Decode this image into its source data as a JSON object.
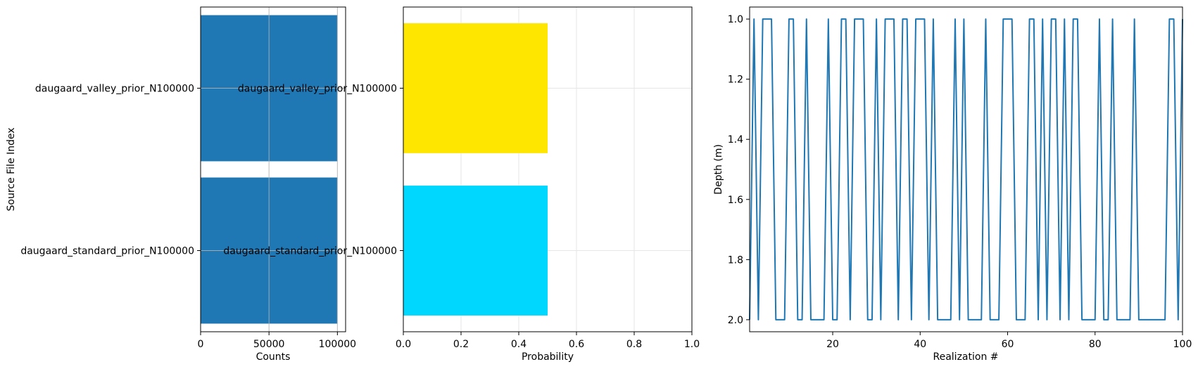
{
  "chart_data": [
    {
      "type": "bar",
      "orientation": "horizontal",
      "categories": [
        "daugaard_standard_prior_N100000",
        "daugaard_valley_prior_N100000"
      ],
      "values": [
        100000,
        100000
      ],
      "color": "#1f77b4",
      "title": "",
      "xlabel": "Counts",
      "ylabel": "Source File Index",
      "xlim": [
        0,
        106000
      ],
      "xticks": [
        0,
        50000,
        100000
      ],
      "xtick_labels": [
        "0",
        "50000",
        "100000"
      ],
      "grid": true
    },
    {
      "type": "bar",
      "orientation": "horizontal",
      "categories": [
        "daugaard_standard_prior_N100000",
        "daugaard_valley_prior_N100000"
      ],
      "values": [
        0.5,
        0.5
      ],
      "colors": [
        "#00d7ff",
        "#ffe600"
      ],
      "title": "",
      "xlabel": "Probability",
      "ylabel": "",
      "xlim": [
        0,
        1.0
      ],
      "xticks": [
        0,
        0.2,
        0.4,
        0.6,
        0.8,
        1.0
      ],
      "xtick_labels": [
        "0.0",
        "0.2",
        "0.4",
        "0.6",
        "0.8",
        "1.0"
      ],
      "grid": true,
      "legend": "none"
    },
    {
      "type": "line",
      "series": [
        {
          "name": "depth",
          "color": "#1f77b4",
          "x": [
            1,
            2,
            3,
            4,
            5,
            6,
            7,
            8,
            9,
            10,
            11,
            12,
            13,
            14,
            15,
            16,
            17,
            18,
            19,
            20,
            21,
            22,
            23,
            24,
            25,
            26,
            27,
            28,
            29,
            30,
            31,
            32,
            33,
            34,
            35,
            36,
            37,
            38,
            39,
            40,
            41,
            42,
            43,
            44,
            45,
            46,
            47,
            48,
            49,
            50,
            51,
            52,
            53,
            54,
            55,
            56,
            57,
            58,
            59,
            60,
            61,
            62,
            63,
            64,
            65,
            66,
            67,
            68,
            69,
            70,
            71,
            72,
            73,
            74,
            75,
            76,
            77,
            78,
            79,
            80,
            81,
            82,
            83,
            84,
            85,
            86,
            87,
            88,
            89,
            90,
            91,
            92,
            93,
            94,
            95,
            96,
            97,
            98,
            99,
            100
          ],
          "values": [
            2,
            1,
            2,
            1,
            1,
            1,
            2,
            2,
            2,
            1,
            1,
            2,
            2,
            1,
            2,
            2,
            2,
            2,
            1,
            2,
            2,
            1,
            1,
            2,
            1,
            1,
            1,
            2,
            2,
            1,
            2,
            1,
            1,
            1,
            2,
            1,
            1,
            2,
            1,
            1,
            1,
            2,
            1,
            2,
            2,
            2,
            2,
            1,
            2,
            1,
            2,
            2,
            2,
            2,
            1,
            2,
            2,
            2,
            1,
            1,
            1,
            2,
            2,
            2,
            1,
            1,
            2,
            1,
            2,
            1,
            1,
            2,
            1,
            2,
            1,
            1,
            2,
            2,
            2,
            2,
            1,
            2,
            2,
            1,
            2,
            2,
            2,
            2,
            1,
            2,
            2,
            2,
            2,
            2,
            2,
            2,
            1,
            1,
            2,
            1
          ]
        }
      ],
      "title": "",
      "xlabel": "Realization #",
      "ylabel": "Depth (m)",
      "xlim": [
        1,
        100
      ],
      "ylim": [
        2.04,
        0.96
      ],
      "xticks": [
        20,
        40,
        60,
        80,
        100
      ],
      "xtick_labels": [
        "20",
        "40",
        "60",
        "80",
        "100"
      ],
      "yticks": [
        1.0,
        1.2,
        1.4,
        1.6,
        1.8,
        2.0
      ],
      "ytick_labels": [
        "1.0",
        "1.2",
        "1.4",
        "1.6",
        "1.8",
        "2.0"
      ],
      "y_inverted": true,
      "grid": false
    }
  ]
}
